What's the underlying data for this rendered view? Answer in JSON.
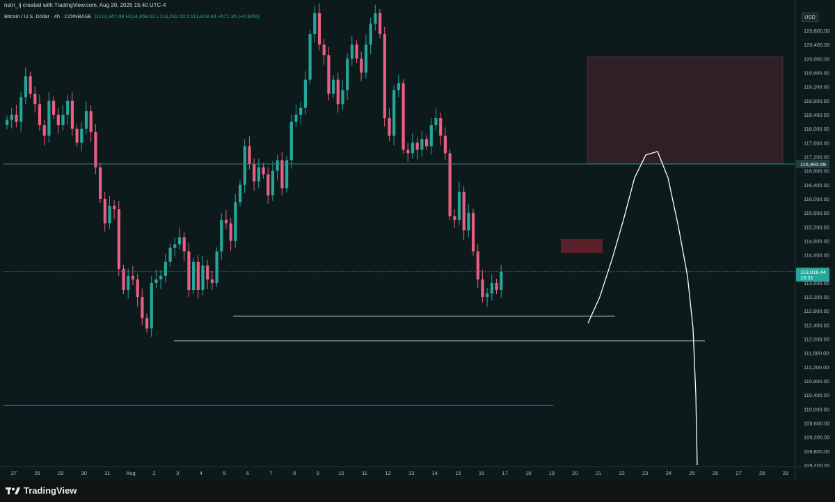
{
  "header": {
    "title": "nstrr_tj created with TradingView.com, Aug 20, 2025 15:40 UTC-4",
    "symbol": "Bitcoin / U.S. Dollar · 4h · COINBASE",
    "open": "O113,347.08",
    "high": "H114,458.52",
    "low": "L113,232.00",
    "close": "C113,918.44",
    "change": "+571.35 (+0.50%)"
  },
  "currency": "USD",
  "colors": {
    "up": "#26a69a",
    "down": "#e85f82",
    "background": "#0d1a1c",
    "supply_zone": "#2f1f26",
    "supply_small": "#5a1f28",
    "blue_line": "#2962ff"
  },
  "footer": {
    "brand": "TradingView"
  },
  "chart_data": {
    "type": "candlestick",
    "ylim": [
      108100,
      121200
    ],
    "y_ticks": [
      "120,800.00",
      "120,400.00",
      "120,000.00",
      "119,600.00",
      "119,200.00",
      "118,800.00",
      "118,400.00",
      "118,000.00",
      "117,600.00",
      "117,200.00",
      "116,800.00",
      "116,400.00",
      "116,000.00",
      "115,600.00",
      "115,200.00",
      "114,800.00",
      "114,400.00",
      "113,600.00",
      "113,200.00",
      "112,800.00",
      "112,400.00",
      "112,000.00",
      "111,600.00",
      "111,200.00",
      "110,800.00",
      "110,400.00",
      "110,000.00",
      "109,600.00",
      "109,200.00",
      "108,800.00",
      "108,400.00"
    ],
    "x_ticks": [
      "27",
      "28",
      "29",
      "30",
      "31",
      "Aug",
      "2",
      "3",
      "4",
      "5",
      "6",
      "7",
      "8",
      "9",
      "10",
      "11",
      "12",
      "13",
      "14",
      "15",
      "16",
      "17",
      "18",
      "19",
      "20",
      "21",
      "22",
      "23",
      "24",
      "25",
      "26",
      "27",
      "28",
      "29"
    ],
    "price_labels": {
      "level": "116,993.59",
      "last": "113,918.44",
      "countdown": "19:31"
    },
    "levels": {
      "horizontal_level": 116993.59,
      "last_price": 113918.44,
      "support_1": 112650,
      "support_2": 111950,
      "blue_line": 110100
    },
    "candles_approx": [
      118250,
      118400,
      118200,
      118900,
      119500,
      119000,
      118700,
      118100,
      117800,
      118800,
      118400,
      118100,
      118400,
      118800,
      118000,
      117600,
      118000,
      118500,
      117900,
      116900,
      116000,
      115300,
      115800,
      115700,
      114000,
      113400,
      113800,
      113700,
      113200,
      112600,
      112300,
      113600,
      113700,
      113800,
      114200,
      114600,
      114700,
      114900,
      114500,
      113400,
      114200,
      113400,
      114100,
      113700,
      113600,
      114500,
      115400,
      115300,
      114800,
      115900,
      116400,
      117500,
      117000,
      116500,
      116900,
      116700,
      116100,
      116800,
      117100,
      116300,
      117100,
      118200,
      118400,
      118600,
      119400,
      120700,
      121300,
      120400,
      120100,
      119000,
      119400,
      118700,
      119100,
      120000,
      120400,
      120000,
      119600,
      120400,
      121000,
      121300,
      120700,
      118300,
      117800,
      119100,
      119300,
      117400,
      117300,
      117600,
      117400,
      117700,
      117500,
      118100,
      118300,
      117800,
      117300,
      115500,
      115400,
      116200,
      115100,
      115600,
      114500,
      113700,
      113200,
      113300,
      113600,
      113400,
      113918
    ]
  },
  "annotations": {
    "supply_zone": {
      "from_price": 117000,
      "to_price": 120050
    },
    "small_zone": {
      "from_price": 114450,
      "to_price": 114850
    },
    "projection": "up to ~117,300 then down below 108,400"
  }
}
